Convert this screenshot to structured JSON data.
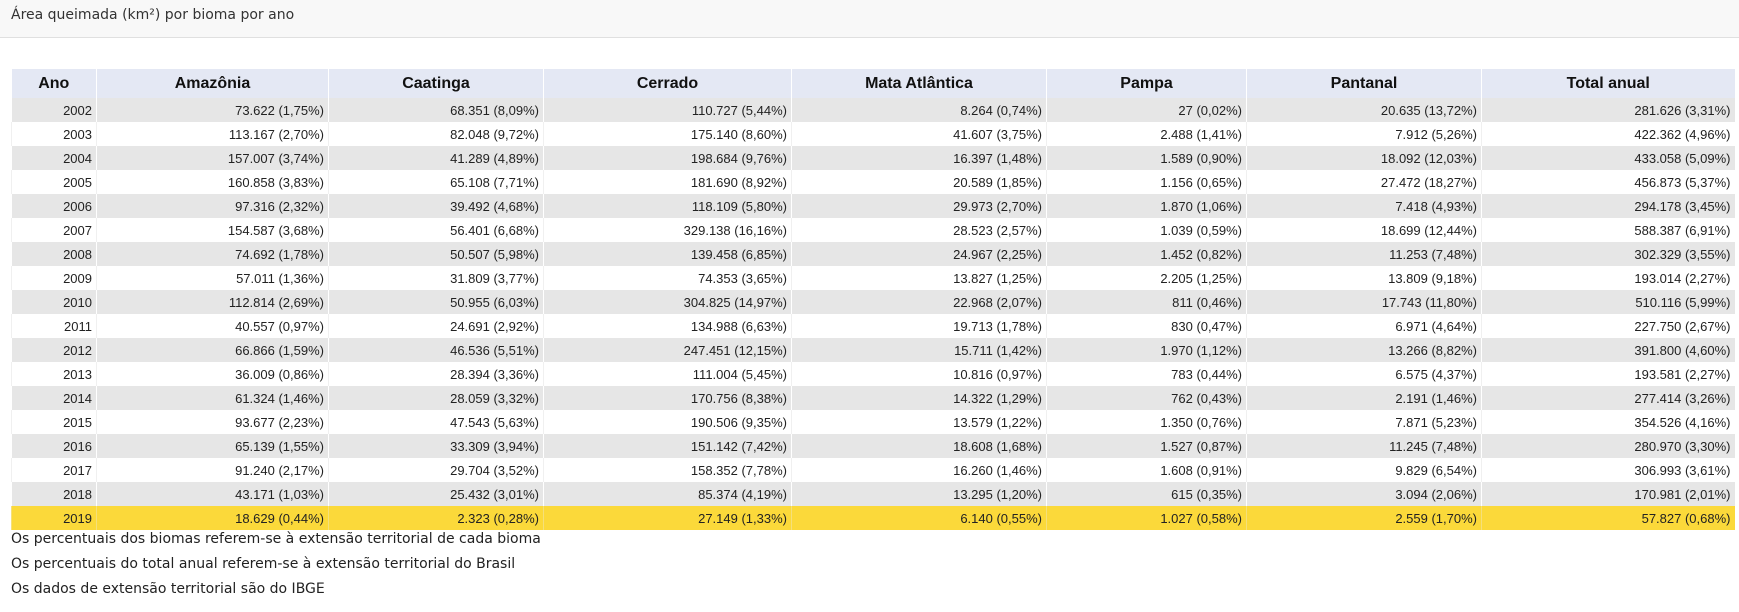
{
  "header": {
    "title": "Área queimada (km²) por bioma por ano"
  },
  "table": {
    "columns": [
      "Ano",
      "Amazônia",
      "Caatinga",
      "Cerrado",
      "Mata Atlântica",
      "Pampa",
      "Pantanal",
      "Total anual"
    ],
    "rows": [
      [
        "2002",
        "73.622 (1,75%)",
        "68.351 (8,09%)",
        "110.727 (5,44%)",
        "8.264 (0,74%)",
        "27 (0,02%)",
        "20.635 (13,72%)",
        "281.626 (3,31%)"
      ],
      [
        "2003",
        "113.167 (2,70%)",
        "82.048 (9,72%)",
        "175.140 (8,60%)",
        "41.607 (3,75%)",
        "2.488 (1,41%)",
        "7.912 (5,26%)",
        "422.362 (4,96%)"
      ],
      [
        "2004",
        "157.007 (3,74%)",
        "41.289 (4,89%)",
        "198.684 (9,76%)",
        "16.397 (1,48%)",
        "1.589 (0,90%)",
        "18.092 (12,03%)",
        "433.058 (5,09%)"
      ],
      [
        "2005",
        "160.858 (3,83%)",
        "65.108 (7,71%)",
        "181.690 (8,92%)",
        "20.589 (1,85%)",
        "1.156 (0,65%)",
        "27.472 (18,27%)",
        "456.873 (5,37%)"
      ],
      [
        "2006",
        "97.316 (2,32%)",
        "39.492 (4,68%)",
        "118.109 (5,80%)",
        "29.973 (2,70%)",
        "1.870 (1,06%)",
        "7.418 (4,93%)",
        "294.178 (3,45%)"
      ],
      [
        "2007",
        "154.587 (3,68%)",
        "56.401 (6,68%)",
        "329.138 (16,16%)",
        "28.523 (2,57%)",
        "1.039 (0,59%)",
        "18.699 (12,44%)",
        "588.387 (6,91%)"
      ],
      [
        "2008",
        "74.692 (1,78%)",
        "50.507 (5,98%)",
        "139.458 (6,85%)",
        "24.967 (2,25%)",
        "1.452 (0,82%)",
        "11.253 (7,48%)",
        "302.329 (3,55%)"
      ],
      [
        "2009",
        "57.011 (1,36%)",
        "31.809 (3,77%)",
        "74.353 (3,65%)",
        "13.827 (1,25%)",
        "2.205 (1,25%)",
        "13.809 (9,18%)",
        "193.014 (2,27%)"
      ],
      [
        "2010",
        "112.814 (2,69%)",
        "50.955 (6,03%)",
        "304.825 (14,97%)",
        "22.968 (2,07%)",
        "811 (0,46%)",
        "17.743 (11,80%)",
        "510.116 (5,99%)"
      ],
      [
        "2011",
        "40.557 (0,97%)",
        "24.691 (2,92%)",
        "134.988 (6,63%)",
        "19.713 (1,78%)",
        "830 (0,47%)",
        "6.971 (4,64%)",
        "227.750 (2,67%)"
      ],
      [
        "2012",
        "66.866 (1,59%)",
        "46.536 (5,51%)",
        "247.451 (12,15%)",
        "15.711 (1,42%)",
        "1.970 (1,12%)",
        "13.266 (8,82%)",
        "391.800 (4,60%)"
      ],
      [
        "2013",
        "36.009 (0,86%)",
        "28.394 (3,36%)",
        "111.004 (5,45%)",
        "10.816 (0,97%)",
        "783 (0,44%)",
        "6.575 (4,37%)",
        "193.581 (2,27%)"
      ],
      [
        "2014",
        "61.324 (1,46%)",
        "28.059 (3,32%)",
        "170.756 (8,38%)",
        "14.322 (1,29%)",
        "762 (0,43%)",
        "2.191 (1,46%)",
        "277.414 (3,26%)"
      ],
      [
        "2015",
        "93.677 (2,23%)",
        "47.543 (5,63%)",
        "190.506 (9,35%)",
        "13.579 (1,22%)",
        "1.350 (0,76%)",
        "7.871 (5,23%)",
        "354.526 (4,16%)"
      ],
      [
        "2016",
        "65.139 (1,55%)",
        "33.309 (3,94%)",
        "151.142 (7,42%)",
        "18.608 (1,68%)",
        "1.527 (0,87%)",
        "11.245 (7,48%)",
        "280.970 (3,30%)"
      ],
      [
        "2017",
        "91.240 (2,17%)",
        "29.704 (3,52%)",
        "158.352 (7,78%)",
        "16.260 (1,46%)",
        "1.608 (0,91%)",
        "9.829 (6,54%)",
        "306.993 (3,61%)"
      ],
      [
        "2018",
        "43.171 (1,03%)",
        "25.432 (3,01%)",
        "85.374 (4,19%)",
        "13.295 (1,20%)",
        "615 (0,35%)",
        "3.094 (2,06%)",
        "170.981 (2,01%)"
      ],
      [
        "2019",
        "18.629 (0,44%)",
        "2.323 (0,28%)",
        "27.149 (1,33%)",
        "6.140 (0,55%)",
        "1.027 (0,58%)",
        "2.559 (1,70%)",
        "57.827 (0,68%)"
      ]
    ],
    "highlight_row_index": 17,
    "colors": {
      "header_bg": "#e4e8f4",
      "row_alt_bg": "#e6e6e6",
      "highlight_bg": "#fbd93a"
    }
  },
  "notes": [
    "Os percentuais dos biomas referem-se à extensão territorial de cada bioma",
    "Os percentuais do total anual referem-se à extensão territorial do Brasil",
    "Os dados de extensão territorial são do IBGE"
  ]
}
